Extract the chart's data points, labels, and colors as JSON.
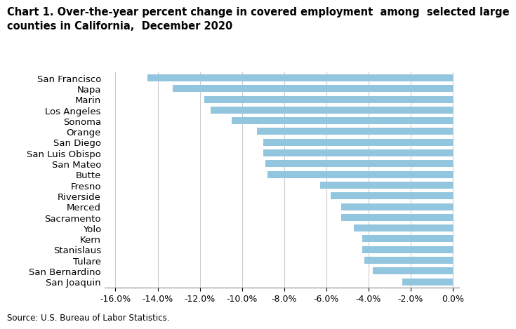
{
  "counties": [
    "San Francisco",
    "Napa",
    "Marin",
    "Los Angeles",
    "Sonoma",
    "Orange",
    "San Diego",
    "San Luis Obispo",
    "San Mateo",
    "Butte",
    "Fresno",
    "Riverside",
    "Merced",
    "Sacramento",
    "Yolo",
    "Kern",
    "Stanislaus",
    "Tulare",
    "San Bernardino",
    "San Joaquin"
  ],
  "values": [
    -14.5,
    -13.3,
    -11.8,
    -11.5,
    -10.5,
    -9.3,
    -9.0,
    -9.0,
    -8.9,
    -8.8,
    -6.3,
    -5.8,
    -5.3,
    -5.3,
    -4.7,
    -4.3,
    -4.3,
    -4.2,
    -3.8,
    -2.4
  ],
  "bar_color": "#92c5de",
  "title": "Chart 1. Over-the-year percent change in covered employment  among  selected large\ncounties in California,  December 2020",
  "xlim": [
    -16.5,
    0.3
  ],
  "xticks": [
    -16.0,
    -14.0,
    -12.0,
    -10.0,
    -8.0,
    -6.0,
    -4.0,
    -2.0,
    0.0
  ],
  "background_color": "#ffffff",
  "grid_color": "#cccccc",
  "source_text": "Source: U.S. Bureau of Labor Statistics.",
  "title_fontsize": 10.5,
  "label_fontsize": 9.5,
  "tick_fontsize": 9,
  "source_fontsize": 8.5
}
